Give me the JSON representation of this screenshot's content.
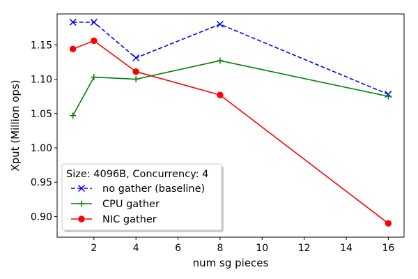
{
  "chart_data": {
    "type": "line",
    "xlabel": "num sg pieces",
    "ylabel": "Xput (Million ops)",
    "xlim": [
      0.25,
      16.75
    ],
    "ylim": [
      0.87,
      1.195
    ],
    "xticks": [
      2,
      4,
      6,
      8,
      10,
      12,
      14,
      16
    ],
    "xtick_labels": [
      "2",
      "4",
      "6",
      "8",
      "10",
      "12",
      "14",
      "16"
    ],
    "yticks": [
      0.9,
      0.95,
      1.0,
      1.05,
      1.1,
      1.15
    ],
    "ytick_labels": [
      "0.90",
      "0.95",
      "1.00",
      "1.05",
      "1.10",
      "1.15"
    ],
    "grid": false,
    "legend_title": "Size: 4096B, Concurrency: 4",
    "legend_position": "bottom-left",
    "x": [
      1,
      2,
      4,
      8,
      16
    ],
    "series": [
      {
        "name": "no gather (baseline)",
        "color": "#0000ff",
        "dash": "dashed",
        "marker": "x",
        "values": [
          1.183,
          1.183,
          1.131,
          1.18,
          1.078
        ]
      },
      {
        "name": "CPU gather",
        "color": "#008000",
        "dash": "solid",
        "marker": "plus",
        "values": [
          1.047,
          1.103,
          1.1,
          1.127,
          1.075
        ]
      },
      {
        "name": "NIC gather",
        "color": "#ff0000",
        "dash": "solid",
        "marker": "circle",
        "values": [
          1.144,
          1.156,
          1.111,
          1.077,
          0.89
        ]
      }
    ]
  }
}
